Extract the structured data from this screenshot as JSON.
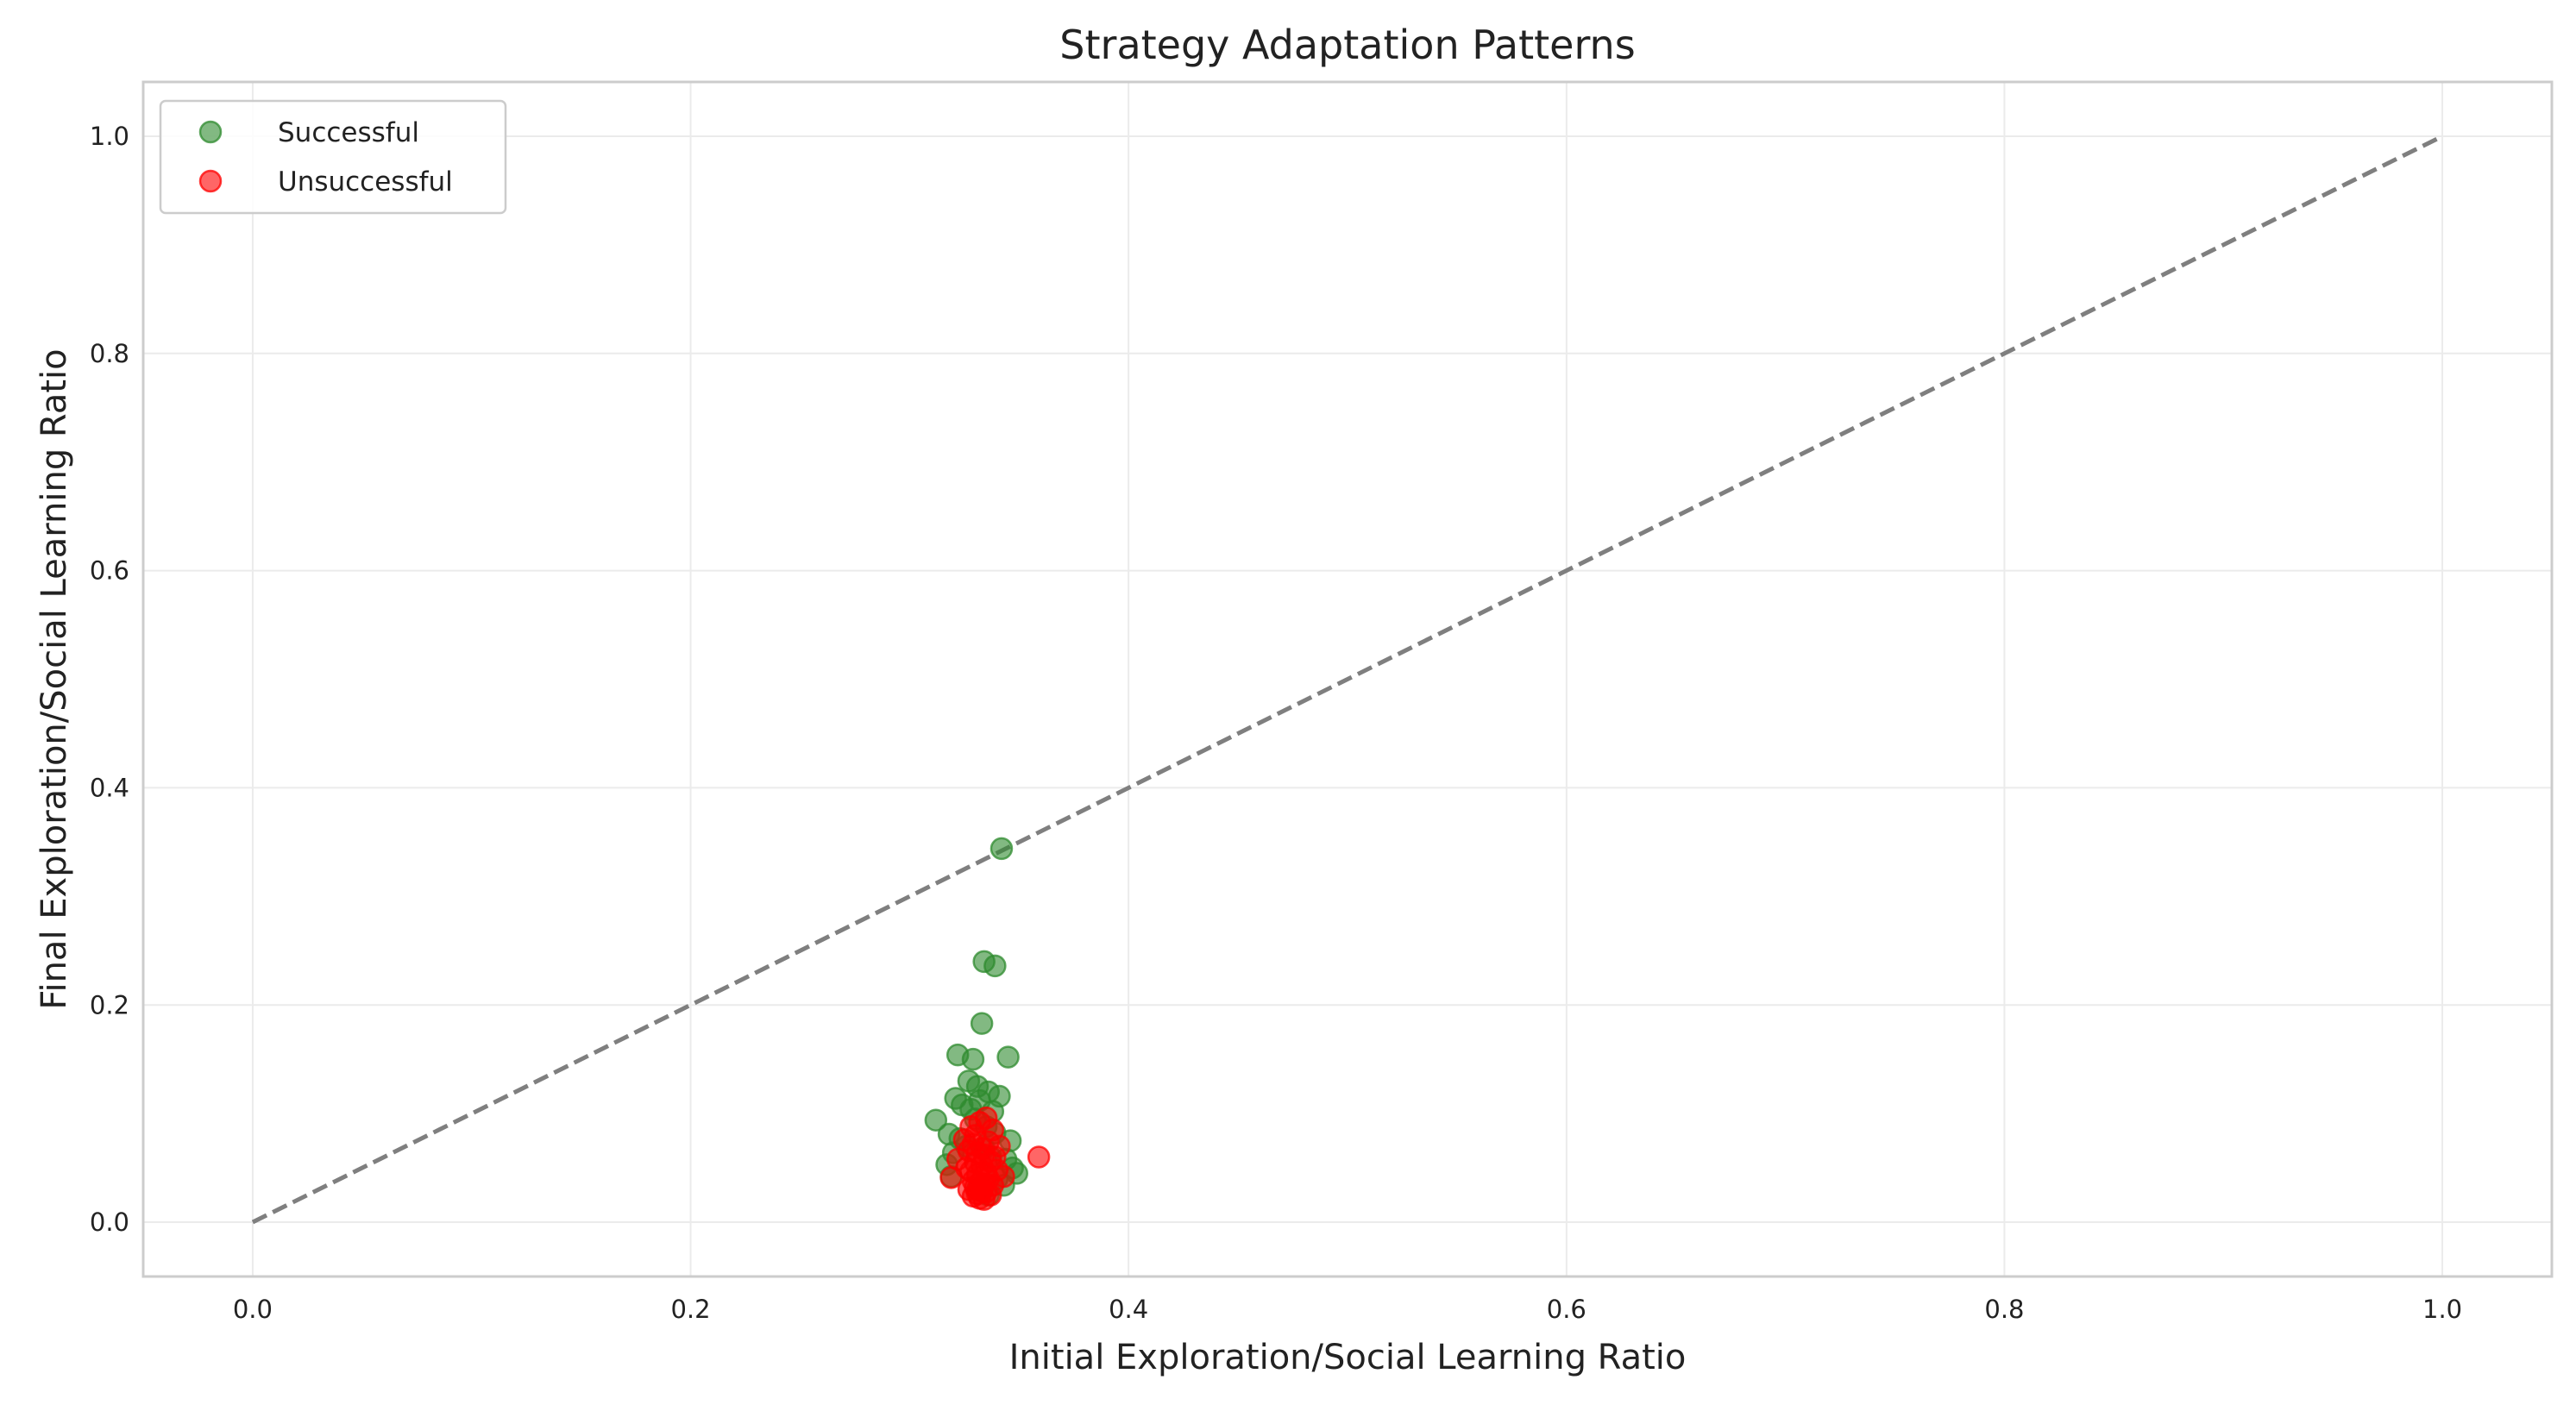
{
  "chart_data": {
    "type": "scatter",
    "title": "Strategy Adaptation Patterns",
    "xlabel": "Initial Exploration/Social Learning Ratio",
    "ylabel": "Final Exploration/Social Learning Ratio",
    "xlim": [
      -0.05,
      1.05
    ],
    "ylim": [
      -0.05,
      1.05
    ],
    "xticks": [
      0.0,
      0.2,
      0.4,
      0.6,
      0.8,
      1.0
    ],
    "yticks": [
      0.0,
      0.2,
      0.4,
      0.6,
      0.8,
      1.0
    ],
    "xtick_labels": [
      "0.0",
      "0.2",
      "0.4",
      "0.6",
      "0.8",
      "1.0"
    ],
    "ytick_labels": [
      "0.0",
      "0.2",
      "0.4",
      "0.6",
      "0.8",
      "1.0"
    ],
    "grid": true,
    "legend": "top-left",
    "reference_line": {
      "style": "dashed",
      "color": "#7f7f7f",
      "x": [
        0.0,
        1.0
      ],
      "y": [
        0.0,
        1.0
      ]
    },
    "series": [
      {
        "name": "Successful",
        "color": "#2e8b2e",
        "x": [
          0.342,
          0.334,
          0.339,
          0.333,
          0.345,
          0.322,
          0.329,
          0.321,
          0.312,
          0.331,
          0.336,
          0.341,
          0.327,
          0.318,
          0.324,
          0.338,
          0.346,
          0.349,
          0.317,
          0.33,
          0.335,
          0.343,
          0.326,
          0.32,
          0.337,
          0.332,
          0.339,
          0.344,
          0.328,
          0.323,
          0.34,
          0.347,
          0.319,
          0.334,
          0.331,
          0.336
        ],
        "y": [
          0.344,
          0.24,
          0.236,
          0.183,
          0.152,
          0.154,
          0.15,
          0.114,
          0.094,
          0.125,
          0.12,
          0.116,
          0.13,
          0.081,
          0.108,
          0.102,
          0.075,
          0.045,
          0.053,
          0.095,
          0.088,
          0.034,
          0.07,
          0.064,
          0.06,
          0.112,
          0.082,
          0.058,
          0.104,
          0.077,
          0.04,
          0.05,
          0.042,
          0.068,
          0.03,
          0.025
        ]
      },
      {
        "name": "Unsuccessful",
        "color": "#ff0000",
        "x": [
          0.359,
          0.332,
          0.328,
          0.335,
          0.338,
          0.33,
          0.325,
          0.336,
          0.341,
          0.329,
          0.333,
          0.331,
          0.327,
          0.334,
          0.339,
          0.322,
          0.337,
          0.33,
          0.333,
          0.326,
          0.34,
          0.328,
          0.335,
          0.331,
          0.343,
          0.319,
          0.336,
          0.329,
          0.332,
          0.334,
          0.338,
          0.33,
          0.327,
          0.333,
          0.335,
          0.331,
          0.337,
          0.329,
          0.332,
          0.334
        ],
        "y": [
          0.06,
          0.092,
          0.088,
          0.096,
          0.085,
          0.08,
          0.076,
          0.074,
          0.07,
          0.072,
          0.068,
          0.064,
          0.066,
          0.062,
          0.06,
          0.058,
          0.056,
          0.055,
          0.052,
          0.05,
          0.048,
          0.047,
          0.045,
          0.044,
          0.042,
          0.041,
          0.04,
          0.038,
          0.036,
          0.035,
          0.034,
          0.032,
          0.03,
          0.029,
          0.028,
          0.026,
          0.025,
          0.024,
          0.022,
          0.021
        ]
      }
    ]
  }
}
